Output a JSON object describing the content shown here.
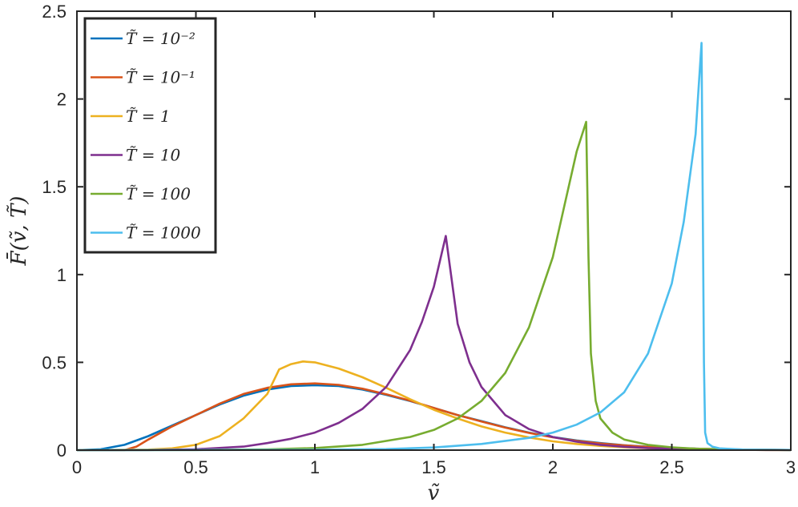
{
  "chart_data": {
    "type": "line",
    "xlabel": "ṽ",
    "ylabel": "F̄(ṽ, T̃)",
    "xlim": [
      0,
      3
    ],
    "ylim": [
      0,
      2.5
    ],
    "xticks": [
      0,
      0.5,
      1,
      1.5,
      2,
      2.5,
      3
    ],
    "xtick_labels": [
      "0",
      "0.5",
      "1",
      "1.5",
      "2",
      "2.5",
      "3"
    ],
    "yticks": [
      0,
      0.5,
      1,
      1.5,
      2,
      2.5
    ],
    "ytick_labels": [
      "0",
      "0.5",
      "1",
      "1.5",
      "2",
      "2.5"
    ],
    "grid": false,
    "legend_position": "top-left",
    "series": [
      {
        "name": "T̃ = 10⁻²",
        "color": "#0072BD",
        "x": [
          0,
          0.1,
          0.2,
          0.3,
          0.4,
          0.5,
          0.6,
          0.7,
          0.8,
          0.9,
          1.0,
          1.1,
          1.2,
          1.3,
          1.4,
          1.5,
          1.6,
          1.7,
          1.8,
          1.9,
          2.0,
          2.1,
          2.2,
          2.3,
          2.4,
          2.5,
          2.6,
          2.7,
          2.8,
          2.9,
          3.0
        ],
        "y": [
          0,
          0.005,
          0.03,
          0.08,
          0.14,
          0.2,
          0.26,
          0.31,
          0.345,
          0.365,
          0.37,
          0.365,
          0.345,
          0.315,
          0.28,
          0.24,
          0.2,
          0.165,
          0.13,
          0.1,
          0.075,
          0.055,
          0.04,
          0.028,
          0.019,
          0.013,
          0.008,
          0.005,
          0.003,
          0.002,
          0.001
        ]
      },
      {
        "name": "T̃ = 10⁻¹",
        "color": "#D95319",
        "x": [
          0,
          0.2,
          0.25,
          0.3,
          0.4,
          0.5,
          0.6,
          0.7,
          0.8,
          0.9,
          1.0,
          1.1,
          1.2,
          1.3,
          1.4,
          1.5,
          1.6,
          1.7,
          1.8,
          1.9,
          2.0,
          2.1,
          2.2,
          2.3,
          2.4,
          2.5,
          2.6,
          2.7,
          2.8,
          2.9,
          3.0
        ],
        "y": [
          0,
          0,
          0.02,
          0.06,
          0.135,
          0.2,
          0.265,
          0.32,
          0.355,
          0.375,
          0.38,
          0.372,
          0.35,
          0.318,
          0.282,
          0.24,
          0.2,
          0.163,
          0.128,
          0.098,
          0.073,
          0.053,
          0.038,
          0.027,
          0.018,
          0.012,
          0.008,
          0.005,
          0.003,
          0.002,
          0.001
        ]
      },
      {
        "name": "T̃ = 1",
        "color": "#EDB120",
        "x": [
          0,
          0.3,
          0.4,
          0.5,
          0.6,
          0.7,
          0.8,
          0.85,
          0.9,
          0.95,
          1.0,
          1.1,
          1.2,
          1.3,
          1.4,
          1.5,
          1.6,
          1.7,
          1.8,
          1.9,
          2.0,
          2.1,
          2.2,
          2.3,
          2.4,
          2.5,
          2.6,
          2.7,
          2.8,
          2.9,
          3.0
        ],
        "y": [
          0,
          0.003,
          0.01,
          0.03,
          0.08,
          0.18,
          0.32,
          0.46,
          0.49,
          0.505,
          0.5,
          0.465,
          0.415,
          0.355,
          0.29,
          0.23,
          0.18,
          0.135,
          0.1,
          0.072,
          0.05,
          0.035,
          0.024,
          0.016,
          0.011,
          0.007,
          0.004,
          0.003,
          0.002,
          0.001,
          0.001
        ]
      },
      {
        "name": "T̃ = 10",
        "color": "#7E2F8E",
        "x": [
          0,
          0.3,
          0.5,
          0.7,
          0.8,
          0.9,
          1.0,
          1.1,
          1.2,
          1.3,
          1.4,
          1.45,
          1.5,
          1.55,
          1.6,
          1.65,
          1.7,
          1.8,
          1.9,
          2.0,
          2.1,
          2.2,
          2.3,
          2.4,
          2.5,
          2.6,
          2.7,
          2.8,
          2.9,
          3.0
        ],
        "y": [
          0,
          0.001,
          0.005,
          0.02,
          0.04,
          0.065,
          0.1,
          0.155,
          0.235,
          0.36,
          0.57,
          0.73,
          0.93,
          1.22,
          0.72,
          0.5,
          0.36,
          0.2,
          0.12,
          0.075,
          0.048,
          0.03,
          0.019,
          0.012,
          0.008,
          0.005,
          0.003,
          0.002,
          0.001,
          0.001
        ]
      },
      {
        "name": "T̃ = 100",
        "color": "#77AC30",
        "x": [
          0,
          0.5,
          0.8,
          1.0,
          1.2,
          1.4,
          1.5,
          1.6,
          1.7,
          1.8,
          1.9,
          2.0,
          2.05,
          2.1,
          2.14,
          2.15,
          2.16,
          2.18,
          2.2,
          2.25,
          2.3,
          2.4,
          2.5,
          2.6,
          2.7,
          2.8,
          3.0
        ],
        "y": [
          0,
          0.001,
          0.004,
          0.012,
          0.03,
          0.075,
          0.115,
          0.18,
          0.28,
          0.44,
          0.7,
          1.1,
          1.4,
          1.7,
          1.87,
          1.1,
          0.55,
          0.28,
          0.18,
          0.1,
          0.06,
          0.03,
          0.016,
          0.008,
          0.004,
          0.002,
          0.001
        ]
      },
      {
        "name": "T̃ = 1000",
        "color": "#4DBEEE",
        "x": [
          0,
          1.0,
          1.3,
          1.5,
          1.7,
          1.9,
          2.0,
          2.1,
          2.2,
          2.3,
          2.4,
          2.5,
          2.55,
          2.6,
          2.625,
          2.635,
          2.64,
          2.65,
          2.67,
          2.7,
          2.8,
          3.0
        ],
        "y": [
          0,
          0.002,
          0.006,
          0.015,
          0.035,
          0.07,
          0.1,
          0.145,
          0.215,
          0.33,
          0.55,
          0.95,
          1.3,
          1.8,
          2.32,
          0.5,
          0.1,
          0.04,
          0.02,
          0.01,
          0.003,
          0.001
        ]
      }
    ]
  }
}
